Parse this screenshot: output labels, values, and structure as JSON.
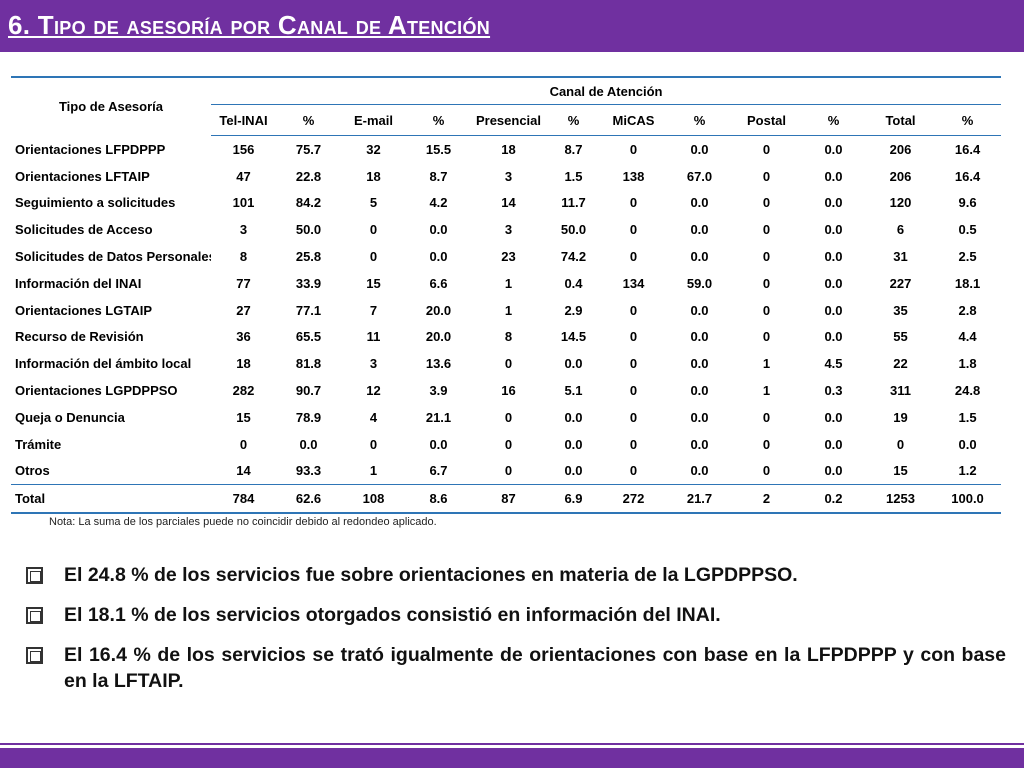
{
  "header": {
    "title": "6. Tipo de asesoría por Canal de Atención"
  },
  "table": {
    "row_header": "Tipo de Asesoría",
    "group_header": "Canal de Atención",
    "columns": [
      "Tel-INAI",
      "%",
      "E-mail",
      "%",
      "Presencial",
      "%",
      "MiCAS",
      "%",
      "Postal",
      "%",
      "Total",
      "%"
    ],
    "rows": [
      {
        "label": "Orientaciones LFPDPPP",
        "values": [
          "156",
          "75.7",
          "32",
          "15.5",
          "18",
          "8.7",
          "0",
          "0.0",
          "0",
          "0.0",
          "206",
          "16.4"
        ]
      },
      {
        "label": "Orientaciones LFTAIP",
        "values": [
          "47",
          "22.8",
          "18",
          "8.7",
          "3",
          "1.5",
          "138",
          "67.0",
          "0",
          "0.0",
          "206",
          "16.4"
        ]
      },
      {
        "label": "Seguimiento a solicitudes",
        "values": [
          "101",
          "84.2",
          "5",
          "4.2",
          "14",
          "11.7",
          "0",
          "0.0",
          "0",
          "0.0",
          "120",
          "9.6"
        ]
      },
      {
        "label": "Solicitudes de Acceso",
        "values": [
          "3",
          "50.0",
          "0",
          "0.0",
          "3",
          "50.0",
          "0",
          "0.0",
          "0",
          "0.0",
          "6",
          "0.5"
        ]
      },
      {
        "label": "Solicitudes de Datos Personales",
        "values": [
          "8",
          "25.8",
          "0",
          "0.0",
          "23",
          "74.2",
          "0",
          "0.0",
          "0",
          "0.0",
          "31",
          "2.5"
        ]
      },
      {
        "label": "Información del INAI",
        "values": [
          "77",
          "33.9",
          "15",
          "6.6",
          "1",
          "0.4",
          "134",
          "59.0",
          "0",
          "0.0",
          "227",
          "18.1"
        ]
      },
      {
        "label": "Orientaciones LGTAIP",
        "values": [
          "27",
          "77.1",
          "7",
          "20.0",
          "1",
          "2.9",
          "0",
          "0.0",
          "0",
          "0.0",
          "35",
          "2.8"
        ]
      },
      {
        "label": "Recurso de Revisión",
        "values": [
          "36",
          "65.5",
          "11",
          "20.0",
          "8",
          "14.5",
          "0",
          "0.0",
          "0",
          "0.0",
          "55",
          "4.4"
        ]
      },
      {
        "label": "Información del ámbito local",
        "values": [
          "18",
          "81.8",
          "3",
          "13.6",
          "0",
          "0.0",
          "0",
          "0.0",
          "1",
          "4.5",
          "22",
          "1.8"
        ]
      },
      {
        "label": "Orientaciones LGPDPPSO",
        "values": [
          "282",
          "90.7",
          "12",
          "3.9",
          "16",
          "5.1",
          "0",
          "0.0",
          "1",
          "0.3",
          "311",
          "24.8"
        ]
      },
      {
        "label": "Queja o Denuncia",
        "values": [
          "15",
          "78.9",
          "4",
          "21.1",
          "0",
          "0.0",
          "0",
          "0.0",
          "0",
          "0.0",
          "19",
          "1.5"
        ]
      },
      {
        "label": "Trámite",
        "values": [
          "0",
          "0.0",
          "0",
          "0.0",
          "0",
          "0.0",
          "0",
          "0.0",
          "0",
          "0.0",
          "0",
          "0.0"
        ]
      },
      {
        "label": "Otros",
        "values": [
          "14",
          "93.3",
          "1",
          "6.7",
          "0",
          "0.0",
          "0",
          "0.0",
          "0",
          "0.0",
          "15",
          "1.2"
        ]
      }
    ],
    "total": {
      "label": "Total",
      "values": [
        "784",
        "62.6",
        "108",
        "8.6",
        "87",
        "6.9",
        "272",
        "21.7",
        "2",
        "0.2",
        "1253",
        "100.0"
      ]
    }
  },
  "note": "Nota: La suma de los parciales puede no coincidir debido al redondeo aplicado.",
  "bullets": [
    "El 24.8 % de los servicios fue sobre orientaciones en materia de la LGPDPPSO.",
    "El 18.1 % de los servicios otorgados consistió en información del INAI.",
    "El 16.4 % de los servicios se trató igualmente de orientaciones con base en la LFPDPPP y con base en la LFTAIP."
  ],
  "colors": {
    "header_bg": "#7030a0",
    "header_text": "#ffffff",
    "table_rule": "#2e75b6"
  },
  "icons": {
    "bullet": "checkbox-bullet-icon"
  }
}
